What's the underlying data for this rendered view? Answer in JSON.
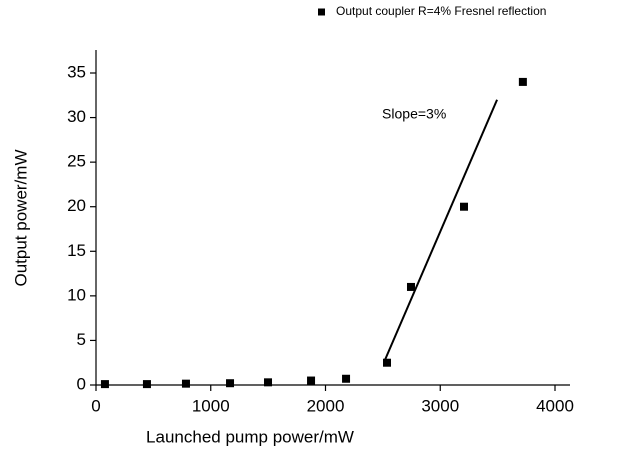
{
  "chart_data": {
    "type": "scatter",
    "xlabel": "Launched pump power/mW",
    "ylabel": "Output power/mW",
    "series": [
      {
        "name": "Output coupler R=4% Fresnel reflection",
        "color": "#000000",
        "x": [
          78,
          444,
          784,
          1168,
          1499,
          1874,
          2179,
          2536,
          2745,
          3207,
          3720
        ],
        "values": [
          0.1,
          0.1,
          0.15,
          0.2,
          0.3,
          0.5,
          0.7,
          2.5,
          11,
          20,
          34
        ]
      }
    ],
    "fit_line": {
      "x": [
        2518,
        3495
      ],
      "values": [
        2.8,
        32
      ],
      "color": "#000000"
    },
    "annotation": "Slope=3%",
    "xlim": [
      0,
      4000
    ],
    "xticks": [
      0,
      1000,
      2000,
      3000,
      4000
    ],
    "ylim": [
      0,
      35
    ],
    "yticks": [
      0,
      5,
      10,
      15,
      20,
      25,
      30,
      35
    ],
    "legend": "top-right"
  }
}
